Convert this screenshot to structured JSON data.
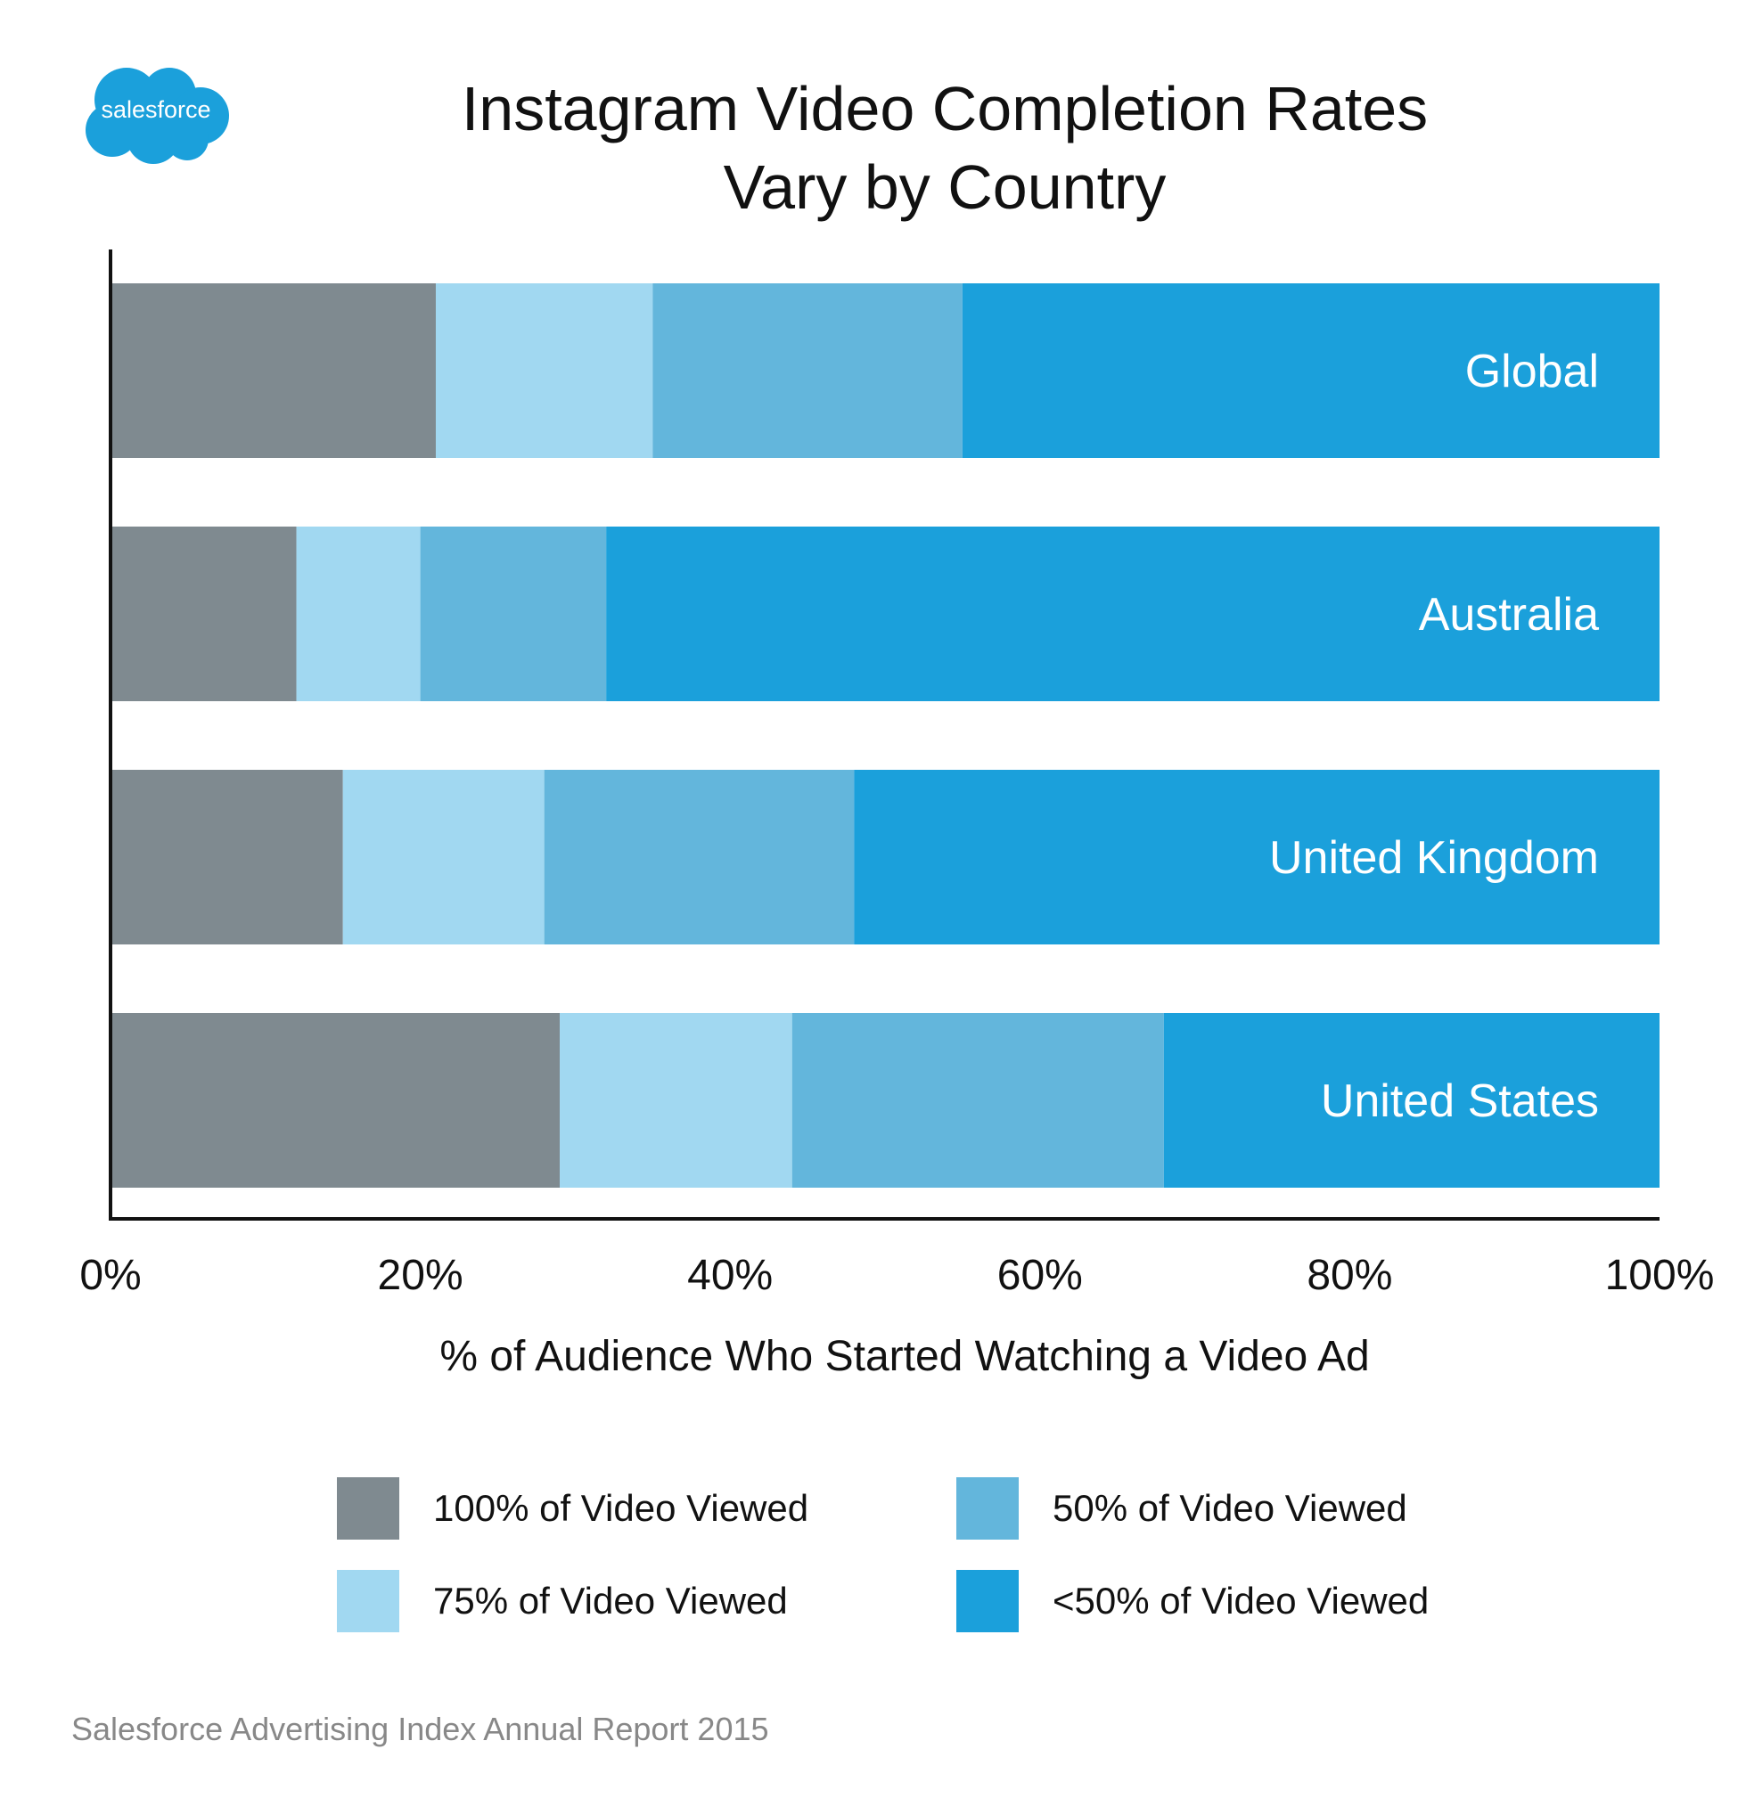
{
  "logo": {
    "text": "salesforce",
    "color": "#1ba0db"
  },
  "title": [
    "Instagram Video Completion Rates",
    "Vary by Country"
  ],
  "source": "Salesforce Advertising Index Annual Report 2015",
  "chart_data": {
    "type": "bar",
    "orientation": "horizontal",
    "stacked": true,
    "title": "Instagram Video Completion Rates Vary by Country",
    "xlabel": "% of Audience Who Started Watching a Video Ad",
    "ylabel": "",
    "xlim": [
      0,
      100
    ],
    "x_ticks": [
      "0%",
      "20%",
      "40%",
      "60%",
      "80%",
      "100%"
    ],
    "x_tick_values": [
      0,
      20,
      40,
      60,
      80,
      100
    ],
    "categories": [
      "Global",
      "Australia",
      "United Kingdom",
      "United States"
    ],
    "series": [
      {
        "name": "100% of Video Viewed",
        "color": "#7f8a90",
        "values": [
          21,
          12,
          15,
          29
        ]
      },
      {
        "name": "75% of Video Viewed",
        "color": "#a1d8f1",
        "values": [
          14,
          8,
          13,
          15
        ]
      },
      {
        "name": "50% of Video Viewed",
        "color": "#63b6dc",
        "values": [
          20,
          12,
          20,
          24
        ]
      },
      {
        "name": "<50% of Video Viewed",
        "color": "#1ba0db",
        "values": [
          45,
          68,
          52,
          32
        ]
      }
    ],
    "legend_position": "bottom",
    "grid": false
  }
}
